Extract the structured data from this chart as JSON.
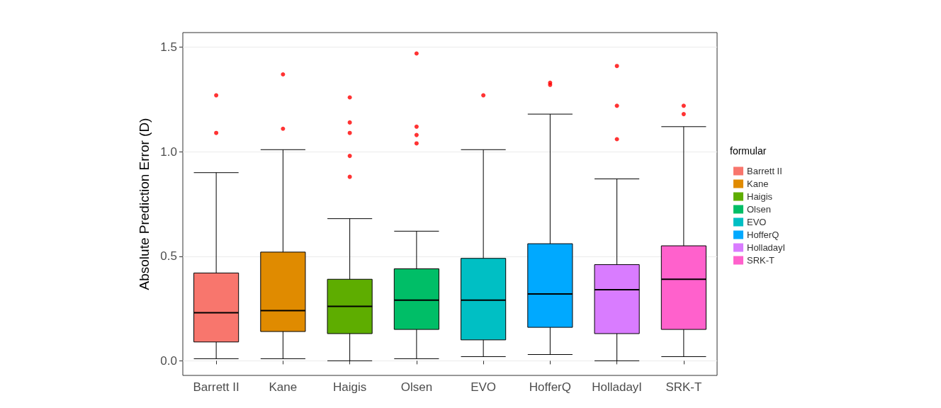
{
  "chart_data": {
    "type": "box",
    "ylabel": "Absolute Prediction Error (D)",
    "legend_title": "formular",
    "legend": "right",
    "grid": "y",
    "categories": [
      "Barrett II",
      "Kane",
      "Haigis",
      "Olsen",
      "EVO",
      "HofferQ",
      "HolladayI",
      "SRK-T"
    ],
    "ylim": [
      -0.07,
      1.57
    ],
    "yticks": [
      {
        "value": 0,
        "label": "0.0"
      },
      0.5,
      {
        "value": 1,
        "label": "1.0"
      },
      1.5
    ],
    "series": [
      {
        "name": "Barrett II",
        "color": "#f8766d",
        "boxes": [
          {
            "low": 0.01,
            "q1": 0.09,
            "median": 0.23,
            "q3": 0.42,
            "high": 0.9,
            "outliers": [
              1.27,
              1.09
            ]
          },
          null,
          null,
          null,
          null,
          null,
          null,
          null
        ]
      },
      {
        "name": "Kane",
        "color": "#e08b00",
        "boxes": [
          null,
          {
            "low": 0.01,
            "q1": 0.14,
            "median": 0.24,
            "q3": 0.52,
            "high": 1.01,
            "outliers": [
              1.37,
              1.11
            ]
          },
          null,
          null,
          null,
          null,
          null,
          null
        ]
      },
      {
        "name": "Haigis",
        "color": "#5ead00",
        "boxes": [
          null,
          null,
          {
            "low": 0,
            "q1": 0.13,
            "median": 0.26,
            "q3": 0.39,
            "high": 0.68,
            "outliers": [
              1.26,
              1.14,
              1.09,
              0.98,
              0.88
            ]
          },
          null,
          null,
          null,
          null,
          null
        ]
      },
      {
        "name": "Olsen",
        "color": "#00be67",
        "boxes": [
          null,
          null,
          null,
          {
            "low": 0.01,
            "q1": 0.15,
            "median": 0.29,
            "q3": 0.44,
            "high": 0.62,
            "outliers": [
              1.47,
              1.12,
              1.08,
              1.04
            ]
          },
          null,
          null,
          null,
          null
        ]
      },
      {
        "name": "EVO",
        "color": "#00bfc4",
        "boxes": [
          null,
          null,
          null,
          null,
          {
            "low": 0.02,
            "q1": 0.1,
            "median": 0.29,
            "q3": 0.49,
            "high": 1.01,
            "outliers": [
              1.27
            ]
          },
          null,
          null,
          null
        ]
      },
      {
        "name": "HofferQ",
        "color": "#00a9ff",
        "boxes": [
          null,
          null,
          null,
          null,
          null,
          {
            "low": 0.03,
            "q1": 0.16,
            "median": 0.32,
            "q3": 0.56,
            "high": 1.18,
            "outliers": [
              1.33,
              1.32
            ]
          },
          null,
          null
        ]
      },
      {
        "name": "HolladayI",
        "color": "#d97cff",
        "boxes": [
          null,
          null,
          null,
          null,
          null,
          null,
          {
            "low": 0,
            "q1": 0.13,
            "median": 0.34,
            "q3": 0.46,
            "high": 0.87,
            "outliers": [
              1.41,
              1.22,
              1.06
            ]
          },
          null
        ]
      },
      {
        "name": "SRK-T",
        "color": "#ff61cc",
        "boxes": [
          null,
          null,
          null,
          null,
          null,
          null,
          null,
          {
            "low": 0.02,
            "q1": 0.15,
            "median": 0.39,
            "q3": 0.55,
            "high": 1.12,
            "outliers": [
              1.22,
              1.18
            ]
          }
        ]
      }
    ]
  }
}
